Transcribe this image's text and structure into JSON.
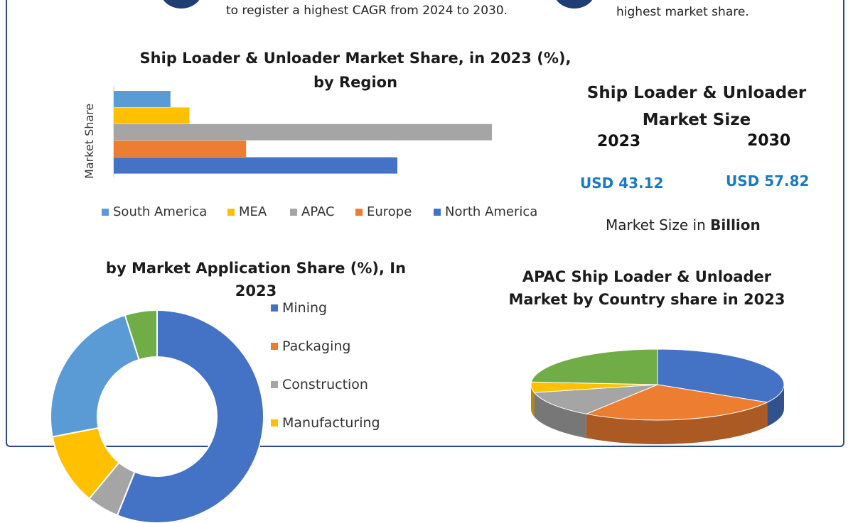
{
  "header": {
    "left_text": "to register a highest CAGR from 2024 to 2030.",
    "right_text": "highest market share."
  },
  "market_size": {
    "title_line1": "Ship Loader & Unloader",
    "title_line2": "Market Size",
    "year_2023": "2023",
    "year_2030": "2030",
    "value_2023": "USD 43.12",
    "value_2030": "USD 57.82",
    "units_prefix": "Market Size in",
    "units_bold": "Billion"
  },
  "legend_app": {
    "items": [
      "Mining",
      "Packaging",
      "Construction",
      "Manufacturing"
    ]
  },
  "colors": {
    "blue": "#4472c4",
    "orange": "#ed7d31",
    "gray": "#a5a5a5",
    "yellow": "#ffc000",
    "light_blue": "#5b9bd5",
    "green": "#70ad47",
    "frame": "#2a4a8c",
    "badge": "#1f3f74"
  },
  "chart_data": [
    {
      "type": "bar",
      "orientation": "horizontal",
      "title_line1": "Ship Loader & Unloader Market Share, in 2023 (%),",
      "title_line2": "by Region",
      "ylabel": "Market Share",
      "categories": [
        "South America",
        "MEA",
        "APAC",
        "Europe",
        "North America"
      ],
      "values": [
        6,
        8,
        40,
        14,
        30
      ],
      "colors": [
        "#5b9bd5",
        "#ffc000",
        "#a5a5a5",
        "#ed7d31",
        "#4472c4"
      ],
      "xlim": [
        0,
        40
      ],
      "legend": "bottom"
    },
    {
      "type": "pie",
      "variant": "donut",
      "title_line1": "by Market Application Share (%), In",
      "title_line2": "2023",
      "slices": [
        {
          "label": "Mining",
          "value": 46
        },
        {
          "label": "Packaging",
          "value": 0
        },
        {
          "label": "Construction",
          "value": 4
        },
        {
          "label": "Manufacturing",
          "value": 9
        },
        {
          "label": "",
          "value": 19
        },
        {
          "label": "",
          "value": 4
        }
      ],
      "colors": [
        "#4472c4",
        "#ed7d31",
        "#a5a5a5",
        "#ffc000",
        "#5b9bd5",
        "#70ad47"
      ],
      "legend": "right"
    },
    {
      "type": "pie",
      "variant": "3d",
      "title_line1": "APAC Ship Loader & Unloader",
      "title_line2": "Market by Country share in 2023",
      "slices": [
        {
          "label": "",
          "value": 28
        },
        {
          "label": "",
          "value": 22
        },
        {
          "label": "",
          "value": 10
        },
        {
          "label": "",
          "value": 4
        },
        {
          "label": "",
          "value": 20
        }
      ],
      "colors": [
        "#4472c4",
        "#ed7d31",
        "#a5a5a5",
        "#ffc000",
        "#70ad47"
      ]
    }
  ]
}
